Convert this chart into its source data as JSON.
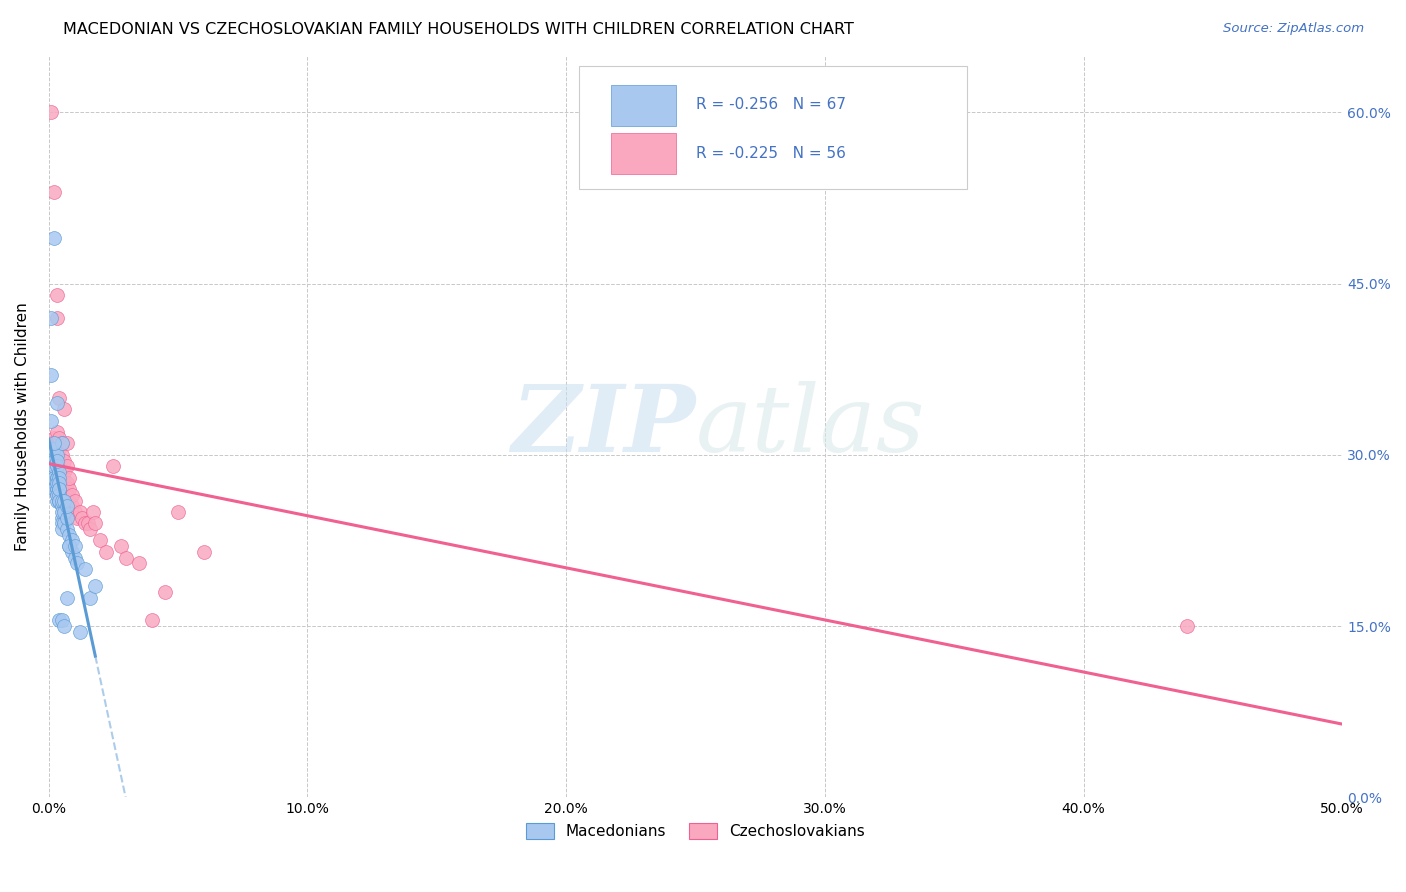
{
  "title": "MACEDONIAN VS CZECHOSLOVAKIAN FAMILY HOUSEHOLDS WITH CHILDREN CORRELATION CHART",
  "source": "Source: ZipAtlas.com",
  "ylabel": "Family Households with Children",
  "x_min": 0.0,
  "x_max": 0.5,
  "y_min": 0.0,
  "y_max": 0.65,
  "x_ticks": [
    0.0,
    0.1,
    0.2,
    0.3,
    0.4,
    0.5
  ],
  "x_tick_labels": [
    "0.0%",
    "10.0%",
    "20.0%",
    "30.0%",
    "40.0%",
    "50.0%"
  ],
  "y_ticks": [
    0.0,
    0.15,
    0.3,
    0.45,
    0.6
  ],
  "y_tick_labels": [
    "0.0%",
    "15.0%",
    "30.0%",
    "45.0%",
    "60.0%"
  ],
  "macedonian_color": "#a8c8f0",
  "czechoslovakian_color": "#f9a8c0",
  "macedonian_line_color": "#5b9bd5",
  "czechoslovakian_line_color": "#f06090",
  "r_mac": -0.256,
  "n_mac": 67,
  "r_czk": -0.225,
  "n_czk": 56,
  "legend_text_color": "#4472c4",
  "watermark_zip": "ZIP",
  "watermark_atlas": "atlas",
  "background_color": "#ffffff",
  "grid_color": "#c8c8c8",
  "macedonians_label": "Macedonians",
  "czechoslovakians_label": "Czechoslovakians",
  "mac_x": [
    0.001,
    0.001,
    0.001,
    0.001,
    0.001,
    0.002,
    0.002,
    0.002,
    0.002,
    0.002,
    0.002,
    0.002,
    0.002,
    0.003,
    0.003,
    0.003,
    0.003,
    0.003,
    0.003,
    0.003,
    0.003,
    0.003,
    0.003,
    0.004,
    0.004,
    0.004,
    0.004,
    0.004,
    0.004,
    0.004,
    0.004,
    0.005,
    0.005,
    0.005,
    0.005,
    0.005,
    0.005,
    0.005,
    0.006,
    0.006,
    0.006,
    0.007,
    0.007,
    0.007,
    0.008,
    0.008,
    0.009,
    0.009,
    0.01,
    0.011,
    0.001,
    0.001,
    0.001,
    0.002,
    0.002,
    0.003,
    0.003,
    0.004,
    0.005,
    0.006,
    0.007,
    0.008,
    0.01,
    0.012,
    0.014,
    0.016,
    0.018
  ],
  "mac_y": [
    0.28,
    0.285,
    0.295,
    0.3,
    0.305,
    0.285,
    0.295,
    0.305,
    0.275,
    0.285,
    0.29,
    0.27,
    0.28,
    0.3,
    0.265,
    0.27,
    0.28,
    0.29,
    0.26,
    0.27,
    0.28,
    0.265,
    0.275,
    0.285,
    0.26,
    0.27,
    0.28,
    0.265,
    0.275,
    0.26,
    0.27,
    0.245,
    0.255,
    0.24,
    0.25,
    0.26,
    0.235,
    0.31,
    0.24,
    0.25,
    0.26,
    0.235,
    0.245,
    0.255,
    0.22,
    0.23,
    0.215,
    0.225,
    0.21,
    0.205,
    0.33,
    0.37,
    0.42,
    0.49,
    0.31,
    0.295,
    0.345,
    0.155,
    0.155,
    0.15,
    0.175,
    0.22,
    0.22,
    0.145,
    0.2,
    0.175,
    0.185
  ],
  "czk_x": [
    0.001,
    0.001,
    0.002,
    0.002,
    0.002,
    0.003,
    0.003,
    0.003,
    0.003,
    0.004,
    0.004,
    0.004,
    0.004,
    0.005,
    0.005,
    0.005,
    0.006,
    0.006,
    0.006,
    0.007,
    0.007,
    0.007,
    0.008,
    0.008,
    0.008,
    0.009,
    0.009,
    0.01,
    0.01,
    0.011,
    0.012,
    0.013,
    0.014,
    0.015,
    0.016,
    0.017,
    0.018,
    0.02,
    0.022,
    0.025,
    0.028,
    0.03,
    0.035,
    0.04,
    0.045,
    0.05,
    0.06,
    0.001,
    0.002,
    0.003,
    0.003,
    0.004,
    0.005,
    0.006,
    0.007,
    0.44
  ],
  "czk_y": [
    0.3,
    0.31,
    0.295,
    0.305,
    0.315,
    0.285,
    0.3,
    0.31,
    0.32,
    0.28,
    0.29,
    0.305,
    0.315,
    0.27,
    0.285,
    0.3,
    0.275,
    0.285,
    0.295,
    0.265,
    0.275,
    0.29,
    0.26,
    0.27,
    0.28,
    0.255,
    0.265,
    0.25,
    0.26,
    0.245,
    0.25,
    0.245,
    0.24,
    0.24,
    0.235,
    0.25,
    0.24,
    0.225,
    0.215,
    0.29,
    0.22,
    0.21,
    0.205,
    0.155,
    0.18,
    0.25,
    0.215,
    0.6,
    0.53,
    0.42,
    0.44,
    0.35,
    0.31,
    0.34,
    0.31,
    0.15
  ]
}
